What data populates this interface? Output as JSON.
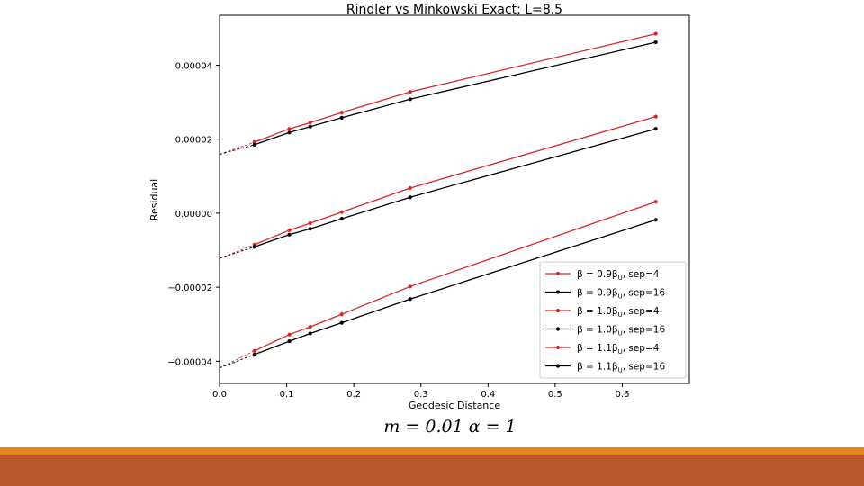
{
  "chart_data": {
    "type": "line",
    "title": "Rindler vs Minkowski Exact; L=8.5",
    "xlabel": "Geodesic Distance",
    "ylabel": "Residual",
    "xlim": [
      0.0,
      0.7
    ],
    "ylim": [
      -4.6e-05,
      5.35e-05
    ],
    "xticks": [
      "0.0",
      "0.1",
      "0.2",
      "0.3",
      "0.4",
      "0.5",
      "0.6"
    ],
    "xtick_values": [
      0.0,
      0.1,
      0.2,
      0.3,
      0.4,
      0.5,
      0.6
    ],
    "yticks": [
      "0.00004",
      "0.00002",
      "0.00000",
      "−0.00002",
      "−0.00004"
    ],
    "ytick_values": [
      4e-05,
      2e-05,
      0.0,
      -2e-05,
      -4e-05
    ],
    "grid": false,
    "legend_position": "lower-right",
    "x": [
      0.052,
      0.104,
      0.135,
      0.182,
      0.284,
      0.65
    ],
    "series": [
      {
        "name": "β = 0.9βU, sep=4",
        "color": "#d62728",
        "values": [
          1.92e-05,
          2.28e-05,
          2.45e-05,
          2.72e-05,
          3.28e-05,
          4.85e-05
        ],
        "extrapolation": {
          "x": [
            0.0,
            0.052
          ],
          "values": [
            1.59e-05,
            1.92e-05
          ]
        }
      },
      {
        "name": "β = 0.9βU, sep=16",
        "color": "#000000",
        "values": [
          1.85e-05,
          2.18e-05,
          2.34e-05,
          2.58e-05,
          3.08e-05,
          4.62e-05
        ],
        "extrapolation": {
          "x": [
            0.0,
            0.052
          ],
          "values": [
            1.59e-05,
            1.85e-05
          ]
        }
      },
      {
        "name": "β = 1.0βU, sep=4",
        "color": "#d62728",
        "values": [
          -8.5e-06,
          -4.6e-06,
          -2.7e-06,
          3e-07,
          6.8e-06,
          2.61e-05
        ],
        "extrapolation": {
          "x": [
            0.0,
            0.052
          ],
          "values": [
            -1.22e-05,
            -8.5e-06
          ]
        }
      },
      {
        "name": "β = 1.0βU, sep=16",
        "color": "#000000",
        "values": [
          -9.1e-06,
          -5.8e-06,
          -4.2e-06,
          -1.5e-06,
          4.3e-06,
          2.28e-05
        ],
        "extrapolation": {
          "x": [
            0.0,
            0.052
          ],
          "values": [
            -1.22e-05,
            -9.1e-06
          ]
        }
      },
      {
        "name": "β = 1.1βU, sep=4",
        "color": "#d62728",
        "values": [
          -3.72e-05,
          -3.28e-05,
          -3.07e-05,
          -2.73e-05,
          -1.98e-05,
          3.1e-06
        ],
        "extrapolation": {
          "x": [
            0.0,
            0.052
          ],
          "values": [
            -4.18e-05,
            -3.72e-05
          ]
        }
      },
      {
        "name": "β = 1.1βU, sep=16",
        "color": "#000000",
        "values": [
          -3.82e-05,
          -3.46e-05,
          -3.25e-05,
          -2.96e-05,
          -2.32e-05,
          -1.8e-06
        ],
        "extrapolation": {
          "x": [
            0.0,
            0.052
          ],
          "values": [
            -4.18e-05,
            -3.82e-05
          ]
        }
      }
    ]
  },
  "legend": [
    {
      "beta": "β = 0.9β",
      "sub": "U",
      "sep": ", sep=4"
    },
    {
      "beta": "β = 0.9β",
      "sub": "U",
      "sep": ", sep=16"
    },
    {
      "beta": "β = 1.0β",
      "sub": "U",
      "sep": ", sep=4"
    },
    {
      "beta": "β = 1.0β",
      "sub": "U",
      "sep": ", sep=16"
    },
    {
      "beta": "β = 1.1β",
      "sub": "U",
      "sep": ", sep=4"
    },
    {
      "beta": "β = 1.1β",
      "sub": "U",
      "sep": ", sep=16"
    }
  ],
  "caption": "m = 0.01  α = 1",
  "colors": {
    "band_orange": "#e8861e",
    "band_rust": "#bd582c"
  }
}
